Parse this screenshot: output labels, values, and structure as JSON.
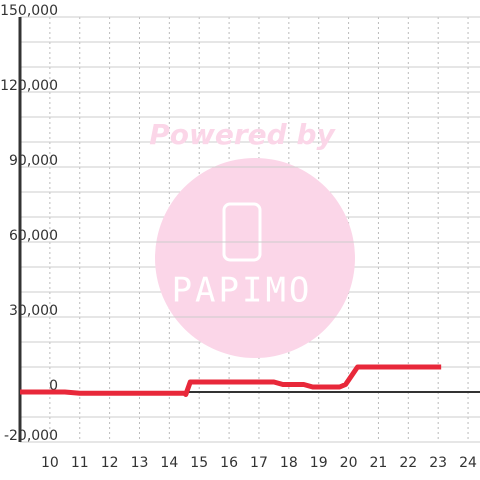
{
  "chart_data": {
    "type": "line",
    "watermark_text": "Powered by",
    "watermark_logo": "PAPIMO",
    "x": [
      9,
      10.5,
      11,
      14.5,
      14.55,
      14.7,
      17.5,
      17.8,
      18.5,
      18.8,
      19.7,
      19.9,
      20.3,
      23.1
    ],
    "series": [
      {
        "color": "#e8283a",
        "values": [
          0,
          0,
          -500,
          -500,
          -1000,
          4000,
          4000,
          3000,
          3000,
          2000,
          2000,
          3000,
          10000,
          10000
        ]
      }
    ],
    "xlim": [
      9,
      24.4
    ],
    "xticks": [
      10,
      11,
      12,
      13,
      14,
      15,
      16,
      17,
      18,
      19,
      20,
      21,
      22,
      23,
      24
    ],
    "ylim": [
      -20000,
      150000
    ],
    "yticks": [
      {
        "value": -20000,
        "label": "-20,000"
      },
      0,
      {
        "value": 30000,
        "label": "30,000"
      },
      {
        "value": 60000,
        "label": "60,000"
      },
      {
        "value": 90000,
        "label": "90,000"
      },
      {
        "value": 120000,
        "label": "120,000"
      },
      {
        "value": 150000,
        "label": "150,000"
      }
    ],
    "y_minor_grid": [
      -10000,
      10000,
      20000,
      40000,
      50000,
      70000,
      80000,
      100000,
      110000,
      130000,
      140000
    ],
    "grid": true
  }
}
